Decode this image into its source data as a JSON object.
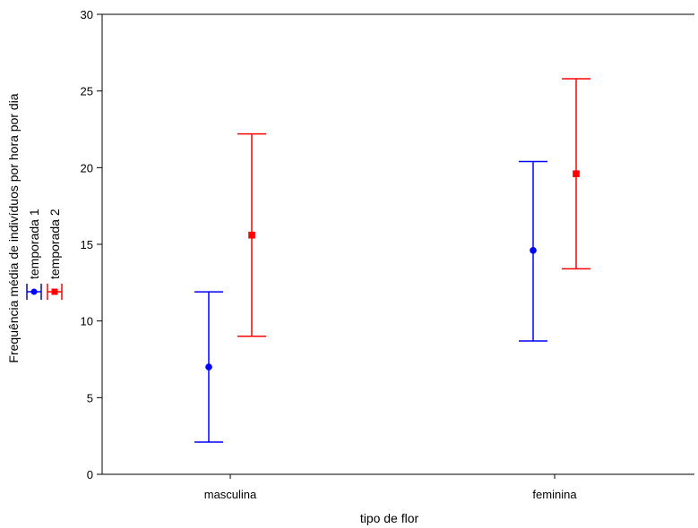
{
  "chart_data": {
    "type": "scatter",
    "title": "",
    "xlabel": "tipo de flor",
    "ylabel": "Frequência média de indivíduos por hora por dia",
    "categories": [
      "masculina",
      "feminina"
    ],
    "ylim": [
      0,
      30
    ],
    "yticks": [
      0,
      5,
      10,
      15,
      20,
      25,
      30
    ],
    "grid": false,
    "legend_position": "left, rotated vertically",
    "series": [
      {
        "name": "temporada 1",
        "color": "#0000ff",
        "marker": "circle",
        "values": [
          7.0,
          14.6
        ],
        "lower": [
          2.1,
          8.7
        ],
        "upper": [
          11.9,
          20.4
        ]
      },
      {
        "name": "temporada 2",
        "color": "#ff0000",
        "marker": "square",
        "values": [
          15.6,
          19.6
        ],
        "lower": [
          9.0,
          13.4
        ],
        "upper": [
          22.2,
          25.8
        ]
      }
    ]
  }
}
